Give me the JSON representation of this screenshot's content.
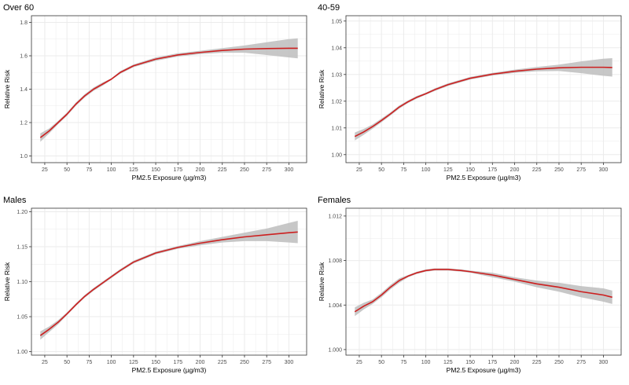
{
  "panels": [
    {
      "title": "Over 60",
      "xlabel": "PM2.5 Exposure (µg/m3)",
      "ylabel": "Relative Risk",
      "chart_data": {
        "type": "line",
        "title": "Over 60",
        "xlabel": "PM2.5 Exposure (µg/m3)",
        "ylabel": "Relative Risk",
        "xlim": [
          10,
          320
        ],
        "ylim": [
          0.96,
          1.84
        ],
        "x_ticks": [
          25,
          50,
          75,
          100,
          125,
          150,
          175,
          200,
          225,
          250,
          275,
          300
        ],
        "y_ticks": [
          1.0,
          1.2,
          1.4,
          1.6,
          1.8
        ],
        "y_tick_labels": [
          "1.0",
          "1.2",
          "1.4",
          "1.6",
          "1.8"
        ],
        "grid": true,
        "series": [
          {
            "x": [
              20,
              30,
              40,
              50,
              60,
              70,
              80,
              90,
              100,
              110,
              125,
              150,
              175,
              200,
              225,
              250,
              275,
              300,
              310
            ],
            "y": [
              1.11,
              1.15,
              1.2,
              1.25,
              1.31,
              1.36,
              1.4,
              1.43,
              1.46,
              1.5,
              1.54,
              1.58,
              1.605,
              1.62,
              1.632,
              1.64,
              1.643,
              1.645,
              1.645
            ],
            "lower": [
              1.085,
              1.135,
              1.19,
              1.24,
              1.3,
              1.35,
              1.39,
              1.42,
              1.455,
              1.492,
              1.532,
              1.57,
              1.595,
              1.61,
              1.618,
              1.618,
              1.605,
              1.59,
              1.585
            ],
            "upper": [
              1.135,
              1.165,
              1.21,
              1.26,
              1.32,
              1.37,
              1.41,
              1.44,
              1.465,
              1.508,
              1.548,
              1.59,
              1.615,
              1.63,
              1.646,
              1.662,
              1.681,
              1.7,
              1.705
            ]
          }
        ]
      }
    },
    {
      "title": "40-59",
      "xlabel": "PM2.5 Exposure (µg/m3)",
      "ylabel": "Relative Risk",
      "chart_data": {
        "type": "line",
        "title": "40-59",
        "xlabel": "PM2.5 Exposure (µg/m3)",
        "ylabel": "Relative Risk",
        "xlim": [
          10,
          320
        ],
        "ylim": [
          0.997,
          1.052
        ],
        "x_ticks": [
          25,
          50,
          75,
          100,
          125,
          150,
          175,
          200,
          225,
          250,
          275,
          300
        ],
        "y_ticks": [
          1.0,
          1.01,
          1.02,
          1.03,
          1.04,
          1.05
        ],
        "y_tick_labels": [
          "1.00",
          "1.01",
          "1.02",
          "1.03",
          "1.04",
          "1.05"
        ],
        "grid": true,
        "series": [
          {
            "x": [
              20,
              30,
              40,
              50,
              60,
              70,
              80,
              90,
              100,
              110,
              125,
              150,
              175,
              200,
              225,
              250,
              275,
              300,
              310
            ],
            "y": [
              1.0068,
              1.0085,
              1.0105,
              1.0128,
              1.0152,
              1.0178,
              1.0198,
              1.0215,
              1.0228,
              1.0243,
              1.0262,
              1.0286,
              1.0301,
              1.0312,
              1.032,
              1.0325,
              1.0327,
              1.0327,
              1.0326
            ],
            "lower": [
              1.0053,
              1.0074,
              1.0097,
              1.0121,
              1.0146,
              1.0172,
              1.0193,
              1.021,
              1.0224,
              1.0238,
              1.0257,
              1.0281,
              1.0296,
              1.0306,
              1.0312,
              1.0313,
              1.0305,
              1.0295,
              1.0292
            ],
            "upper": [
              1.0083,
              1.0096,
              1.0113,
              1.0135,
              1.0158,
              1.0184,
              1.0203,
              1.022,
              1.0232,
              1.0248,
              1.0267,
              1.0291,
              1.0306,
              1.0318,
              1.0328,
              1.0337,
              1.0349,
              1.0359,
              1.0361
            ]
          }
        ]
      }
    },
    {
      "title": "Males",
      "xlabel": "PM2.5 Exposure (µg/m3)",
      "ylabel": "Relative Risk",
      "chart_data": {
        "type": "line",
        "title": "Males",
        "xlabel": "PM2.5 Exposure (µg/m3)",
        "ylabel": "Relative Risk",
        "xlim": [
          10,
          320
        ],
        "ylim": [
          0.995,
          1.205
        ],
        "x_ticks": [
          25,
          50,
          75,
          100,
          125,
          150,
          175,
          200,
          225,
          250,
          275,
          300
        ],
        "y_ticks": [
          1.0,
          1.05,
          1.1,
          1.15,
          1.2
        ],
        "y_tick_labels": [
          "1.00",
          "1.05",
          "1.10",
          "1.15",
          "1.20"
        ],
        "grid": true,
        "series": [
          {
            "x": [
              20,
              30,
              40,
              50,
              60,
              70,
              80,
              90,
              100,
              110,
              125,
              150,
              175,
              200,
              225,
              250,
              275,
              300,
              310
            ],
            "y": [
              1.023,
              1.032,
              1.042,
              1.054,
              1.067,
              1.079,
              1.089,
              1.098,
              1.107,
              1.116,
              1.128,
              1.141,
              1.149,
              1.155,
              1.16,
              1.164,
              1.167,
              1.17,
              1.171
            ],
            "lower": [
              1.017,
              1.028,
              1.039,
              1.052,
              1.065,
              1.077,
              1.087,
              1.096,
              1.105,
              1.114,
              1.126,
              1.139,
              1.147,
              1.152,
              1.156,
              1.158,
              1.158,
              1.156,
              1.155
            ],
            "upper": [
              1.029,
              1.036,
              1.045,
              1.056,
              1.069,
              1.081,
              1.091,
              1.1,
              1.109,
              1.118,
              1.13,
              1.143,
              1.151,
              1.158,
              1.164,
              1.17,
              1.176,
              1.184,
              1.187
            ]
          }
        ]
      }
    },
    {
      "title": "Females",
      "xlabel": "PM2.5 Exposure (µg/m3)",
      "ylabel": "Relative Risk",
      "chart_data": {
        "type": "line",
        "title": "Females",
        "xlabel": "PM2.5 Exposure (µg/m3)",
        "ylabel": "Relative Risk",
        "xlim": [
          10,
          320
        ],
        "ylim": [
          0.9995,
          1.0127
        ],
        "x_ticks": [
          25,
          50,
          75,
          100,
          125,
          150,
          175,
          200,
          225,
          250,
          275,
          300
        ],
        "y_ticks": [
          1.0,
          1.004,
          1.008,
          1.012
        ],
        "y_tick_labels": [
          "1.000",
          "1.004",
          "1.008",
          "1.012"
        ],
        "grid": true,
        "series": [
          {
            "x": [
              20,
              30,
              40,
              50,
              60,
              70,
              80,
              90,
              100,
              110,
              125,
              140,
              150,
              175,
              200,
              225,
              250,
              275,
              300,
              310
            ],
            "y": [
              1.0034,
              1.0039,
              1.0043,
              1.0049,
              1.0056,
              1.0062,
              1.0066,
              1.0069,
              1.0071,
              1.0072,
              1.0072,
              1.0071,
              1.007,
              1.0067,
              1.0063,
              1.0059,
              1.0056,
              1.0052,
              1.0049,
              1.0047
            ],
            "lower": [
              1.003,
              1.0036,
              1.0041,
              1.0047,
              1.0054,
              1.006,
              1.0065,
              1.0068,
              1.007,
              1.0071,
              1.0071,
              1.007,
              1.0069,
              1.0065,
              1.0061,
              1.0056,
              1.0052,
              1.0047,
              1.0043,
              1.0041
            ],
            "upper": [
              1.0038,
              1.0042,
              1.0045,
              1.0051,
              1.0058,
              1.0064,
              1.0067,
              1.007,
              1.0072,
              1.0073,
              1.0073,
              1.0072,
              1.0071,
              1.0069,
              1.0065,
              1.0062,
              1.006,
              1.0057,
              1.0055,
              1.0053
            ]
          }
        ]
      }
    }
  ],
  "style": {
    "line_color": "#cc1f1f",
    "ribbon_color": "#bdbdbd",
    "grid_color": "#ebebeb",
    "border_color": "#333333"
  }
}
